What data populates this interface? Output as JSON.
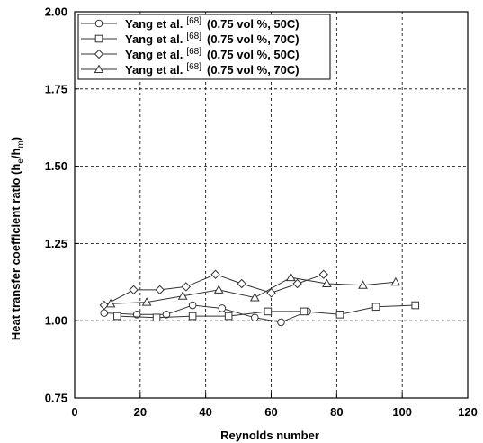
{
  "chart_data": {
    "type": "line",
    "xlabel": "Reynolds number",
    "ylabel": "Heat transfer coefficient ratio (h_e/h_m)",
    "ylabel_parts": {
      "main": "Heat transfer coefficient ratio (h",
      "sub1": "e",
      "mid": "/h",
      "sub2": "m",
      "end": ")"
    },
    "xlim": [
      0,
      120
    ],
    "ylim": [
      0.75,
      2.0
    ],
    "xticks": [
      "0",
      "20",
      "40",
      "60",
      "80",
      "100",
      "120"
    ],
    "yticks": [
      "0.75",
      "1.00",
      "1.25",
      "1.50",
      "1.75",
      "2.00"
    ],
    "grid": true,
    "legend_position": "top-left",
    "series": [
      {
        "name": "Yang et al. [68] (0.75 vol %, 50C)",
        "label_main": "Yang et al.",
        "label_ref": "[68]",
        "label_cond": "(0.75 vol %, 50C)",
        "marker": "circle",
        "x": [
          9,
          19,
          28,
          36,
          45,
          55,
          63,
          71
        ],
        "y": [
          1.025,
          1.02,
          1.02,
          1.05,
          1.04,
          1.01,
          0.995,
          1.03
        ]
      },
      {
        "name": "Yang et al. [68] (0.75 vol %, 70C)",
        "label_main": "Yang et al.",
        "label_ref": "[68]",
        "label_cond": "(0.75 vol %, 70C)",
        "marker": "square",
        "x": [
          13,
          25,
          36,
          47,
          59,
          70,
          81,
          92,
          104
        ],
        "y": [
          1.015,
          1.01,
          1.015,
          1.015,
          1.03,
          1.03,
          1.02,
          1.045,
          1.05
        ]
      },
      {
        "name": "Yang et al. [68] (0.75 vol %, 50C)",
        "label_main": "Yang et al.",
        "label_ref": "[68]",
        "label_cond": "(0.75 vol %, 50C)",
        "marker": "diamond",
        "x": [
          9,
          18,
          26,
          34,
          43,
          51,
          60,
          68,
          76
        ],
        "y": [
          1.05,
          1.1,
          1.1,
          1.11,
          1.15,
          1.12,
          1.09,
          1.12,
          1.15
        ]
      },
      {
        "name": "Yang et al. [68] (0.75 vol %, 70C)",
        "label_main": "Yang et al.",
        "label_ref": "[68]",
        "label_cond": "(0.75 vol %, 70C)",
        "marker": "triangle",
        "x": [
          11,
          22,
          33,
          44,
          55,
          66,
          77,
          88,
          98
        ],
        "y": [
          1.055,
          1.06,
          1.08,
          1.1,
          1.075,
          1.14,
          1.12,
          1.115,
          1.125
        ]
      }
    ]
  }
}
